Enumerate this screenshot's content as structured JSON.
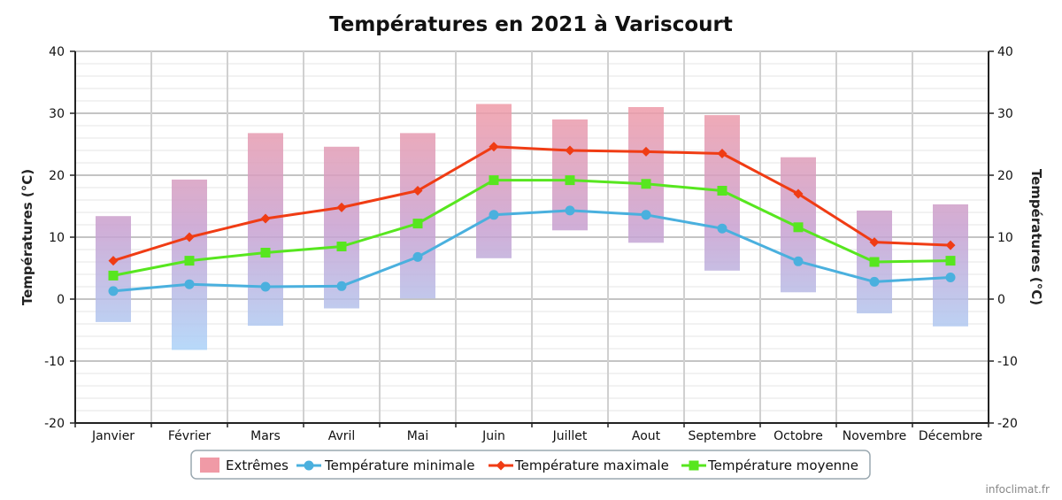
{
  "chart_data": {
    "type": "bar",
    "title": "Températures en 2021 à Variscourt",
    "ylabel_left": "Températures (°C)",
    "ylabel_right": "Températures (°C)",
    "ylim": [
      -20,
      40
    ],
    "yticks": [
      -20,
      -10,
      0,
      10,
      20,
      30,
      40
    ],
    "grid": true,
    "legend_position": "bottom-center",
    "categories": [
      "Janvier",
      "Février",
      "Mars",
      "Avril",
      "Mai",
      "Juin",
      "Juillet",
      "Aout",
      "Septembre",
      "Octobre",
      "Novembre",
      "Décembre"
    ],
    "extremes": {
      "name": "Extrêmes",
      "low": [
        -3.7,
        -8.2,
        -4.3,
        -1.5,
        0.1,
        6.6,
        11.1,
        9.1,
        4.6,
        1.1,
        -2.3,
        -4.4
      ],
      "high": [
        13.4,
        19.3,
        26.8,
        24.6,
        26.8,
        31.5,
        29.0,
        31.0,
        29.7,
        22.9,
        14.3,
        15.3
      ]
    },
    "series": [
      {
        "name": "Température minimale",
        "color": "#4ab0de",
        "marker": "circle",
        "values": [
          1.3,
          2.4,
          2.0,
          2.1,
          6.8,
          13.6,
          14.3,
          13.6,
          11.4,
          6.1,
          2.8,
          3.5
        ]
      },
      {
        "name": "Température maximale",
        "color": "#f03c14",
        "marker": "diamond",
        "values": [
          6.2,
          10.0,
          13.0,
          14.8,
          17.5,
          24.6,
          24.0,
          23.8,
          23.5,
          17.0,
          9.2,
          8.7
        ]
      },
      {
        "name": "Température moyenne",
        "color": "#57e61f",
        "marker": "square",
        "values": [
          3.8,
          6.2,
          7.5,
          8.5,
          12.2,
          19.2,
          19.2,
          18.6,
          17.5,
          11.6,
          6.0,
          6.2
        ]
      }
    ],
    "colors": {
      "extremes_top": "#f09aa6",
      "extremes_bottom": "#aad4fa"
    }
  },
  "credit": "infoclimat.fr"
}
